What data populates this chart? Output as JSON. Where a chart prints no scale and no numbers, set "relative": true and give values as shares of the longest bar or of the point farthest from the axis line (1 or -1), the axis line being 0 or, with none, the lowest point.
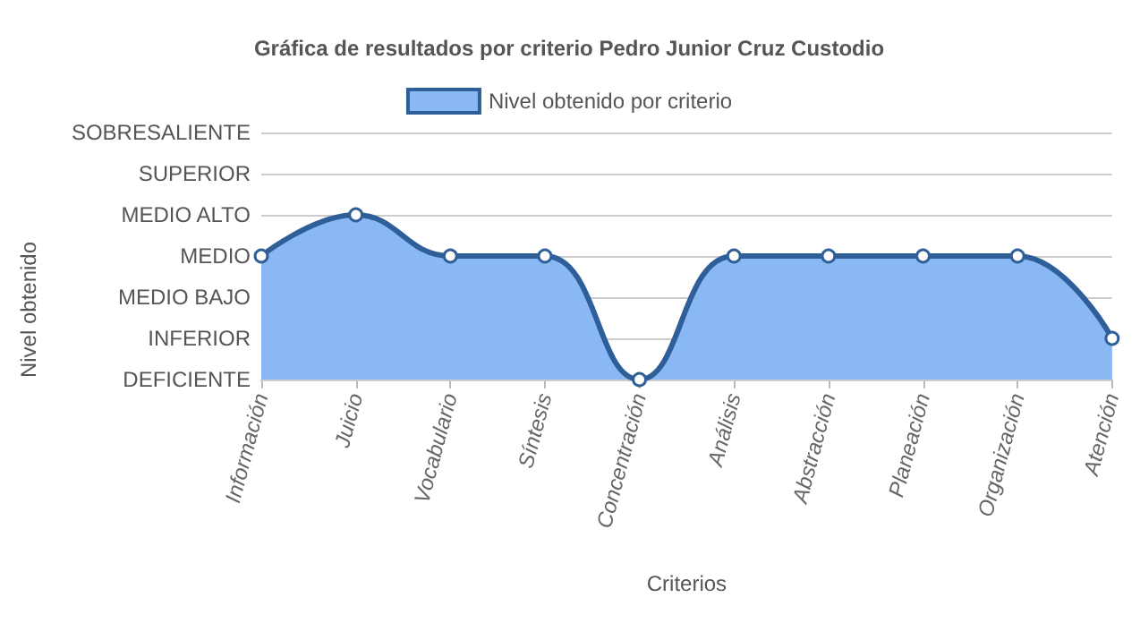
{
  "chart_data": {
    "type": "area",
    "title": "Gráfica de resultados por criterio Pedro Junior Cruz Custodio",
    "xlabel": "Criterios",
    "annotations": [
      "Nivel obtenido"
    ],
    "categories": [
      "Información",
      "Juicio",
      "Vocabulario",
      "Síntesis",
      "Concentración",
      "Análisis",
      "Abstracción",
      "Planeación",
      "Organización",
      "Atención"
    ],
    "series": [
      {
        "name": "Nivel obtenido por criterio",
        "color": "#2f5f98",
        "values": [
          0.75,
          1,
          0.75,
          0.75,
          0,
          0.75,
          0.75,
          0.75,
          0.75,
          0.25
        ]
      }
    ],
    "relative": true,
    "ref_lines": [
      {
        "axis": "y",
        "value": 0,
        "label": "DEFICIENTE",
        "color": "#cccccc"
      },
      {
        "axis": "y",
        "value": 0.25,
        "label": "INFERIOR",
        "color": "#cccccc"
      },
      {
        "axis": "y",
        "value": 0.5,
        "label": "MEDIO BAJO",
        "color": "#cccccc"
      },
      {
        "axis": "y",
        "value": 0.75,
        "label": "MEDIO",
        "color": "#cccccc"
      },
      {
        "axis": "y",
        "value": 1,
        "label": "MEDIO ALTO",
        "color": "#cccccc"
      },
      {
        "axis": "y",
        "value": 1.25,
        "label": "SUPERIOR",
        "color": "#cccccc"
      },
      {
        "axis": "y",
        "value": 1.5,
        "label": "SOBRESALIENTE",
        "color": "#cccccc"
      }
    ],
    "legend": "top",
    "marker": "circle",
    "line_style": "solid"
  }
}
